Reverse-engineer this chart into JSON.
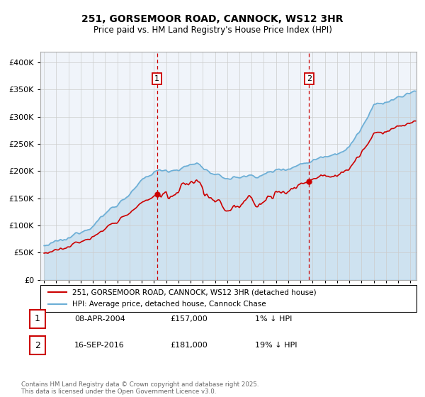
{
  "title_line1": "251, GORSEMOOR ROAD, CANNOCK, WS12 3HR",
  "title_line2": "Price paid vs. HM Land Registry's House Price Index (HPI)",
  "ytick_values": [
    0,
    50000,
    100000,
    150000,
    200000,
    250000,
    300000,
    350000,
    400000
  ],
  "ylim": [
    0,
    420000
  ],
  "xlim_start": 1994.7,
  "xlim_end": 2025.5,
  "hpi_color": "#6baed6",
  "hpi_fill_color": "#c6dbef",
  "price_color": "#cc0000",
  "dashed_line_color": "#cc0000",
  "marker1_x": 2004.25,
  "marker2_x": 2016.71,
  "legend_price_label": "251, GORSEMOOR ROAD, CANNOCK, WS12 3HR (detached house)",
  "legend_hpi_label": "HPI: Average price, detached house, Cannock Chase",
  "annotation1_date": "08-APR-2004",
  "annotation1_price": "£157,000",
  "annotation1_hpi": "1% ↓ HPI",
  "annotation2_date": "16-SEP-2016",
  "annotation2_price": "£181,000",
  "annotation2_hpi": "19% ↓ HPI",
  "footer": "Contains HM Land Registry data © Crown copyright and database right 2025.\nThis data is licensed under the Open Government Licence v3.0.",
  "bg_color": "#ffffff"
}
